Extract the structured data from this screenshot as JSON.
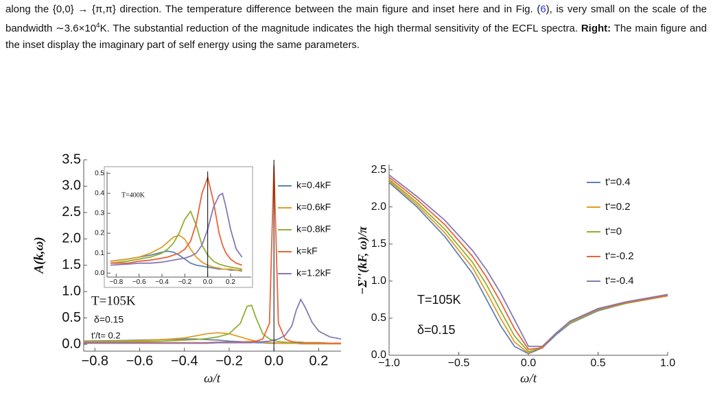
{
  "caption": [
    "along the {0,0} → {π,π} direction. The temperature difference between the main figure and inset here and in Fig. (",
    "6",
    "), is very small on the scale of the bandwidth ∼3.6×10",
    "4",
    "K. The substantial reduction of the magnitude indicates the high thermal sensitivity of the ECFL spectra. ",
    "Right:",
    " The main figure and the inset display the imaginary part of self energy using the same parameters."
  ],
  "chart_data": [
    {
      "type": "line",
      "xlabel": "ω/t",
      "ylabel": "A(k,ω)",
      "zero_line": true,
      "annotations": [
        "T=105K",
        "δ=0.15",
        "t'/t= 0.2"
      ],
      "xlim": [
        -0.85,
        0.3
      ],
      "ylim": [
        -0.13,
        3.5
      ],
      "xticks": [
        {
          "value": -0.8,
          "label": "−0.8"
        },
        {
          "value": -0.6,
          "label": "−0.6"
        },
        {
          "value": -0.4,
          "label": "−0.4"
        },
        {
          "value": -0.2,
          "label": "−0.2"
        },
        {
          "value": 0,
          "label": "0.0"
        },
        0.2
      ],
      "yticks": [
        {
          "value": 0,
          "label": "0.0"
        },
        0.5,
        {
          "value": 1,
          "label": "1.0"
        },
        1.5,
        {
          "value": 2,
          "label": "2.0"
        },
        2.5,
        {
          "value": 3,
          "label": "3.0"
        },
        3.5
      ],
      "x": [
        -0.85,
        -0.7,
        -0.6,
        -0.5,
        -0.4,
        -0.35,
        -0.3,
        -0.25,
        -0.2,
        -0.15,
        -0.12,
        -0.1,
        -0.08,
        -0.05,
        -0.02,
        0,
        0.02,
        0.05,
        0.08,
        0.1,
        0.12,
        0.14,
        0.17,
        0.2,
        0.25,
        0.3
      ],
      "series": [
        {
          "name": "k=0.4kF",
          "color": "#5e81b5",
          "values": [
            0.06,
            0.07,
            0.08,
            0.09,
            0.1,
            0.1,
            0.09,
            0.08,
            0.06,
            0.05,
            0.04,
            0.04,
            0.03,
            0.03,
            0.02,
            0.02,
            0.02,
            0.02,
            0.02,
            0.02,
            0.01,
            0.01,
            0.01,
            0.01,
            0.01,
            0.01
          ]
        },
        {
          "name": "k=0.6kF",
          "color": "#e19c24",
          "values": [
            0.05,
            0.06,
            0.07,
            0.09,
            0.12,
            0.16,
            0.2,
            0.22,
            0.2,
            0.14,
            0.1,
            0.08,
            0.06,
            0.04,
            0.03,
            0.03,
            0.02,
            0.02,
            0.02,
            0.02,
            0.02,
            0.01,
            0.01,
            0.01,
            0.01,
            0.01
          ]
        },
        {
          "name": "k=0.8kF",
          "color": "#8fb032",
          "values": [
            0.04,
            0.05,
            0.05,
            0.06,
            0.08,
            0.09,
            0.11,
            0.14,
            0.2,
            0.4,
            0.72,
            0.74,
            0.5,
            0.2,
            0.1,
            0.07,
            0.05,
            0.04,
            0.03,
            0.03,
            0.02,
            0.02,
            0.02,
            0.02,
            0.02,
            0.02
          ]
        },
        {
          "name": "k=kF",
          "color": "#eb6235",
          "values": [
            0.03,
            0.03,
            0.03,
            0.03,
            0.03,
            0.03,
            0.03,
            0.04,
            0.04,
            0.04,
            0.05,
            0.05,
            0.06,
            0.1,
            0.4,
            3.4,
            0.4,
            0.1,
            0.05,
            0.04,
            0.04,
            0.03,
            0.03,
            0.03,
            0.02,
            0.02
          ]
        },
        {
          "name": "k=1.2kF",
          "color": "#8778b3",
          "values": [
            0.02,
            0.02,
            0.02,
            0.02,
            0.02,
            0.02,
            0.02,
            0.03,
            0.03,
            0.03,
            0.03,
            0.03,
            0.04,
            0.05,
            0.06,
            0.08,
            0.1,
            0.17,
            0.35,
            0.65,
            0.85,
            0.7,
            0.42,
            0.25,
            0.14,
            0.1
          ]
        }
      ]
    },
    {
      "type": "line",
      "zero_line": true,
      "annotations": [
        "T=400K"
      ],
      "xlim": [
        -0.88,
        0.38
      ],
      "ylim": [
        -0.02,
        0.51
      ],
      "xticks": [
        {
          "value": -0.8,
          "label": "−0.8"
        },
        {
          "value": -0.6,
          "label": "−0.6"
        },
        {
          "value": -0.4,
          "label": "−0.4"
        },
        {
          "value": -0.2,
          "label": "−0.2"
        },
        {
          "value": 0,
          "label": "0.0"
        },
        0.2
      ],
      "yticks": [
        {
          "value": 0,
          "label": "0.0"
        },
        0.1,
        0.2,
        0.3,
        0.4,
        0.5
      ],
      "x": [
        -0.85,
        -0.7,
        -0.6,
        -0.5,
        -0.4,
        -0.35,
        -0.3,
        -0.25,
        -0.2,
        -0.15,
        -0.1,
        -0.05,
        0,
        0.05,
        0.1,
        0.13,
        0.16,
        0.2,
        0.25,
        0.3
      ],
      "series": [
        {
          "color": "#5e81b5",
          "values": [
            0.06,
            0.07,
            0.08,
            0.09,
            0.105,
            0.11,
            0.105,
            0.09,
            0.07,
            0.05,
            0.04,
            0.035,
            0.03,
            0.025,
            0.02,
            0.02,
            0.02,
            0.015,
            0.015,
            0.01
          ]
        },
        {
          "color": "#e19c24",
          "values": [
            0.06,
            0.07,
            0.08,
            0.1,
            0.13,
            0.155,
            0.18,
            0.19,
            0.17,
            0.12,
            0.08,
            0.055,
            0.04,
            0.03,
            0.025,
            0.02,
            0.02,
            0.02,
            0.015,
            0.015
          ]
        },
        {
          "color": "#8fb032",
          "values": [
            0.05,
            0.06,
            0.07,
            0.08,
            0.1,
            0.12,
            0.15,
            0.2,
            0.27,
            0.31,
            0.24,
            0.14,
            0.09,
            0.06,
            0.045,
            0.04,
            0.035,
            0.03,
            0.025,
            0.02
          ]
        },
        {
          "color": "#eb6235",
          "values": [
            0.05,
            0.05,
            0.06,
            0.065,
            0.075,
            0.08,
            0.09,
            0.1,
            0.12,
            0.16,
            0.25,
            0.4,
            0.48,
            0.36,
            0.2,
            0.14,
            0.1,
            0.07,
            0.05,
            0.04
          ]
        },
        {
          "color": "#8778b3",
          "values": [
            0.04,
            0.045,
            0.05,
            0.05,
            0.055,
            0.06,
            0.065,
            0.07,
            0.075,
            0.085,
            0.1,
            0.14,
            0.22,
            0.33,
            0.39,
            0.4,
            0.33,
            0.22,
            0.12,
            0.08
          ]
        }
      ]
    },
    {
      "type": "line",
      "xlabel": "ω/t",
      "ylabel": "−Σ′′(kF, ω)/π",
      "annotations": [
        "T=105K",
        "δ=0.15"
      ],
      "xlim": [
        -1,
        1
      ],
      "ylim": [
        0,
        2.57
      ],
      "xticks": [
        {
          "value": -1,
          "label": "−1.0"
        },
        {
          "value": -0.5,
          "label": "−0.5"
        },
        {
          "value": 0,
          "label": "0.0"
        },
        0.5,
        {
          "value": 1,
          "label": "1.0"
        }
      ],
      "yticks": [
        {
          "value": 0,
          "label": "0.0"
        },
        0.5,
        {
          "value": 1,
          "label": "1.0"
        },
        1.5,
        {
          "value": 2,
          "label": "2.0"
        },
        2.5
      ],
      "x": [
        -1,
        -0.8,
        -0.6,
        -0.4,
        -0.3,
        -0.2,
        -0.1,
        0,
        0.1,
        0.2,
        0.3,
        0.5,
        0.7,
        1
      ],
      "series": [
        {
          "name": "t'=0.4",
          "color": "#5e81b5",
          "values": [
            2.33,
            2.0,
            1.6,
            1.1,
            0.75,
            0.4,
            0.12,
            0.02,
            0.1,
            0.28,
            0.43,
            0.6,
            0.7,
            0.8
          ]
        },
        {
          "name": "t'=0.2",
          "color": "#e19c24",
          "values": [
            2.35,
            2.03,
            1.65,
            1.18,
            0.85,
            0.5,
            0.18,
            0.03,
            0.12,
            0.3,
            0.44,
            0.61,
            0.7,
            0.8
          ]
        },
        {
          "name": "t'=0",
          "color": "#8fb032",
          "values": [
            2.37,
            2.06,
            1.7,
            1.25,
            0.95,
            0.6,
            0.26,
            0.05,
            0.1,
            0.3,
            0.45,
            0.61,
            0.7,
            0.81
          ]
        },
        {
          "name": "t'=-0.2",
          "color": "#eb6235",
          "values": [
            2.4,
            2.1,
            1.76,
            1.33,
            1.05,
            0.72,
            0.36,
            0.08,
            0.1,
            0.3,
            0.46,
            0.62,
            0.71,
            0.81
          ]
        },
        {
          "name": "t'=-0.4",
          "color": "#8778b3",
          "values": [
            2.43,
            2.14,
            1.82,
            1.41,
            1.15,
            0.84,
            0.48,
            0.12,
            0.12,
            0.3,
            0.46,
            0.63,
            0.72,
            0.82
          ]
        }
      ]
    }
  ]
}
